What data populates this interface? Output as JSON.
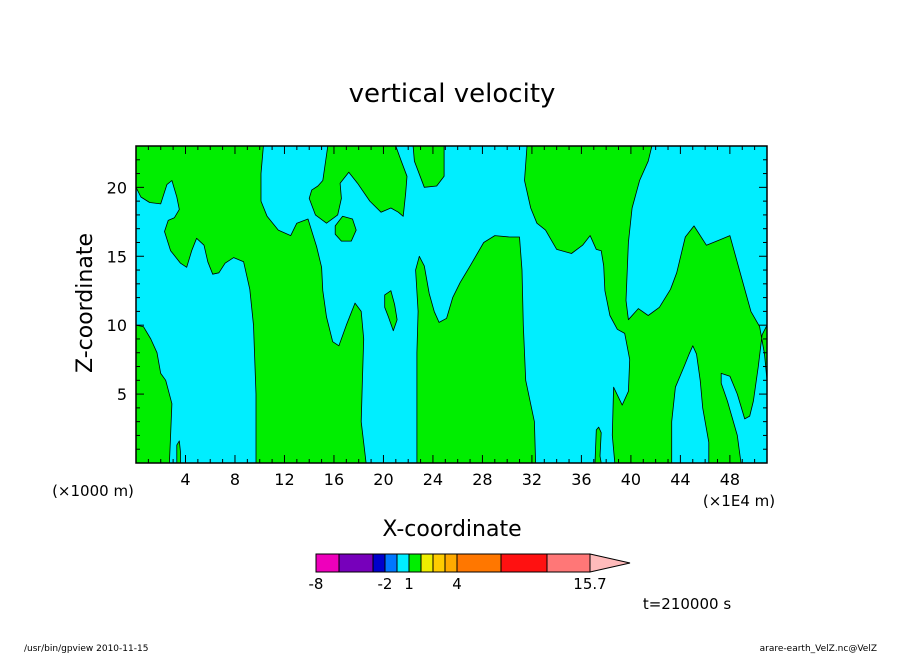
{
  "chart_data": {
    "type": "heatmap",
    "title": "vertical velocity",
    "xlabel": "X-coordinate",
    "ylabel": "Z-coordinate",
    "x_unit_left": "(×1000 m)",
    "x_unit_right": "(×1E4 m)",
    "time_label": "t=210000 s",
    "xlim": [
      0,
      51
    ],
    "ylim": [
      0,
      23
    ],
    "x_ticks": [
      4,
      8,
      12,
      16,
      20,
      24,
      28,
      32,
      36,
      40,
      44,
      48
    ],
    "y_ticks": [
      5,
      10,
      15,
      20
    ],
    "colors": {
      "negative": "#00eeff",
      "positive": "#00ee00"
    },
    "regions": [
      {
        "name": "green-region-left",
        "sign": "positive",
        "points": [
          [
            0,
            23
          ],
          [
            0,
            20
          ],
          [
            0.4,
            19.3
          ],
          [
            1.1,
            18.9
          ],
          [
            2,
            18.8
          ],
          [
            2.5,
            20.2
          ],
          [
            2.9,
            20.5
          ],
          [
            3.3,
            19.3
          ],
          [
            3.5,
            18.4
          ],
          [
            3.1,
            17.8
          ],
          [
            2.6,
            17.6
          ],
          [
            2.3,
            16.8
          ],
          [
            2.8,
            15.4
          ],
          [
            3.6,
            14.5
          ],
          [
            4.1,
            14.2
          ],
          [
            4.5,
            15.4
          ],
          [
            4.9,
            16.3
          ],
          [
            5.5,
            15.8
          ],
          [
            5.8,
            14.6
          ],
          [
            6.2,
            13.7
          ],
          [
            6.7,
            13.8
          ],
          [
            7.2,
            14.5
          ],
          [
            7.9,
            14.9
          ],
          [
            8.7,
            14.6
          ],
          [
            9.2,
            12.6
          ],
          [
            9.5,
            10
          ],
          [
            9.7,
            5
          ],
          [
            9.7,
            0
          ],
          [
            18.6,
            0
          ],
          [
            18.2,
            3
          ],
          [
            18.3,
            6
          ],
          [
            18.4,
            9
          ],
          [
            18.2,
            11
          ],
          [
            17.7,
            11.6
          ],
          [
            17,
            10
          ],
          [
            16.4,
            8.5
          ],
          [
            15.9,
            8.8
          ],
          [
            15.4,
            10.6
          ],
          [
            15.1,
            12.5
          ],
          [
            15,
            14.2
          ],
          [
            14.6,
            15.7
          ],
          [
            13.9,
            17.7
          ],
          [
            13,
            17.4
          ],
          [
            12.5,
            16.5
          ],
          [
            11.5,
            16.9
          ],
          [
            10.6,
            17.9
          ],
          [
            10.1,
            19
          ],
          [
            10.1,
            21
          ],
          [
            10.3,
            23
          ]
        ]
      },
      {
        "name": "green-region-center",
        "sign": "positive",
        "points": [
          [
            15.5,
            23
          ],
          [
            15.1,
            20.5
          ],
          [
            14.7,
            20.1
          ],
          [
            14.2,
            19.8
          ],
          [
            14,
            19.2
          ],
          [
            14.5,
            18
          ],
          [
            15.4,
            17.4
          ],
          [
            16.3,
            18
          ],
          [
            16.6,
            19.2
          ],
          [
            16.5,
            20.3
          ],
          [
            17.2,
            21.1
          ],
          [
            17.9,
            20.3
          ],
          [
            18.9,
            19
          ],
          [
            19.8,
            18.2
          ],
          [
            20.6,
            18.5
          ],
          [
            21.2,
            18.2
          ],
          [
            21.6,
            17.9
          ],
          [
            21.8,
            19.6
          ],
          [
            21.9,
            20.8
          ],
          [
            21.4,
            22
          ],
          [
            21,
            23
          ]
        ]
      },
      {
        "name": "green-region-top-a",
        "sign": "positive",
        "points": [
          [
            22.4,
            23
          ],
          [
            22.5,
            21.9
          ],
          [
            23.3,
            20
          ],
          [
            24.3,
            20.1
          ],
          [
            24.9,
            20.8
          ],
          [
            24.9,
            23
          ]
        ]
      },
      {
        "name": "green-region-upper-dot",
        "sign": "positive",
        "points": [
          [
            16.1,
            17.2
          ],
          [
            16.7,
            17.9
          ],
          [
            17.5,
            17.7
          ],
          [
            17.8,
            16.9
          ],
          [
            17.4,
            16.1
          ],
          [
            16.6,
            16.1
          ],
          [
            16.1,
            16.6
          ]
        ]
      },
      {
        "name": "green-region-small-islet",
        "sign": "positive",
        "points": [
          [
            20.1,
            12.2
          ],
          [
            20.6,
            12.5
          ],
          [
            20.9,
            11.5
          ],
          [
            21.1,
            10.4
          ],
          [
            20.8,
            9.6
          ],
          [
            20.4,
            10.6
          ],
          [
            20.1,
            11.3
          ]
        ]
      },
      {
        "name": "green-region-mid",
        "sign": "positive",
        "points": [
          [
            22.7,
            0
          ],
          [
            22.7,
            8
          ],
          [
            22.8,
            11
          ],
          [
            22.6,
            14
          ],
          [
            22.9,
            15
          ],
          [
            23.3,
            14.3
          ],
          [
            23.7,
            12.3
          ],
          [
            24.1,
            11
          ],
          [
            24.5,
            10.2
          ],
          [
            25.1,
            10.5
          ],
          [
            25.6,
            12
          ],
          [
            26.2,
            13.1
          ],
          [
            27,
            14.3
          ],
          [
            28.1,
            16
          ],
          [
            29,
            16.5
          ],
          [
            30.2,
            16.4
          ],
          [
            31,
            16.4
          ],
          [
            31.2,
            14
          ],
          [
            31.3,
            10
          ],
          [
            31.5,
            6
          ],
          [
            32.2,
            3
          ],
          [
            32.3,
            0
          ]
        ]
      },
      {
        "name": "green-region-top-right",
        "sign": "positive",
        "points": [
          [
            31.6,
            23
          ],
          [
            31.4,
            20.5
          ],
          [
            31.9,
            18.5
          ],
          [
            32.4,
            17.4
          ],
          [
            33.1,
            16.9
          ],
          [
            34,
            15.5
          ],
          [
            35.2,
            15.2
          ],
          [
            36.1,
            15.8
          ],
          [
            36.7,
            16.5
          ],
          [
            37.2,
            15.5
          ],
          [
            37.6,
            15.4
          ],
          [
            37.8,
            14.3
          ],
          [
            37.9,
            12.5
          ],
          [
            38.3,
            10.7
          ],
          [
            38.9,
            9.7
          ],
          [
            39.5,
            9.4
          ],
          [
            39.9,
            7.5
          ],
          [
            39.8,
            5.2
          ],
          [
            39.3,
            4.2
          ],
          [
            38.6,
            5.5
          ],
          [
            38.5,
            2
          ],
          [
            38.7,
            0
          ],
          [
            43.3,
            0
          ],
          [
            43.3,
            3
          ],
          [
            43.6,
            5.5
          ],
          [
            44.3,
            7
          ],
          [
            44.7,
            7.9
          ],
          [
            45,
            8.5
          ],
          [
            45.3,
            7.9
          ],
          [
            45.6,
            6
          ],
          [
            45.8,
            4
          ],
          [
            46.3,
            1.5
          ],
          [
            46.3,
            0
          ],
          [
            48.9,
            0
          ],
          [
            48.6,
            2
          ],
          [
            47.8,
            4.5
          ],
          [
            47.3,
            5.8
          ],
          [
            47.3,
            6.5
          ],
          [
            48,
            6.3
          ],
          [
            48.6,
            5
          ],
          [
            49.2,
            3.2
          ],
          [
            49.6,
            3.4
          ],
          [
            49.9,
            4.5
          ],
          [
            50.3,
            7
          ],
          [
            50.6,
            9.3
          ],
          [
            51,
            10
          ],
          [
            51,
            6
          ],
          [
            50.8,
            7.9
          ],
          [
            50.4,
            9.9
          ],
          [
            49.7,
            11
          ],
          [
            48.8,
            13.9
          ],
          [
            48,
            16.5
          ],
          [
            47.2,
            16.2
          ],
          [
            46.1,
            15.8
          ],
          [
            45.1,
            17.2
          ],
          [
            44.4,
            16.4
          ],
          [
            43.7,
            13.8
          ],
          [
            43.2,
            12.6
          ],
          [
            42.3,
            11.3
          ],
          [
            41.4,
            10.7
          ],
          [
            40.6,
            11.2
          ],
          [
            39.8,
            10.4
          ],
          [
            39.6,
            11.8
          ],
          [
            39.8,
            16
          ],
          [
            40.1,
            18.5
          ],
          [
            40.7,
            20.5
          ],
          [
            41.4,
            21.9
          ],
          [
            41.7,
            23
          ]
        ]
      },
      {
        "name": "green-region-bottom-left",
        "sign": "positive",
        "points": [
          [
            0,
            10
          ],
          [
            0,
            0
          ],
          [
            2.7,
            0
          ],
          [
            2.8,
            2
          ],
          [
            2.9,
            4.3
          ],
          [
            2.4,
            6
          ],
          [
            2,
            6.5
          ],
          [
            1.7,
            8
          ],
          [
            1.2,
            9
          ],
          [
            0.6,
            9.9
          ]
        ]
      },
      {
        "name": "green-region-small-right",
        "sign": "positive",
        "points": [
          [
            37.1,
            0
          ],
          [
            37.2,
            2.4
          ],
          [
            37.4,
            2.6
          ],
          [
            37.6,
            2.2
          ],
          [
            37.5,
            0.5
          ],
          [
            37.6,
            0
          ]
        ]
      },
      {
        "name": "green-region-small-bottom",
        "sign": "positive",
        "points": [
          [
            3.3,
            0
          ],
          [
            3.3,
            1.3
          ],
          [
            3.5,
            1.6
          ],
          [
            3.6,
            0.8
          ],
          [
            3.6,
            0
          ]
        ]
      }
    ],
    "colorbar": {
      "labels": [
        "-8",
        "-2",
        "1",
        "4",
        "15.7"
      ],
      "boxes": [
        "#ee00bb",
        "#7700bb",
        "#0000cc",
        "#0077ff",
        "#00eeff",
        "#00ee00",
        "#eeee00",
        "#ffcc00",
        "#ffaa00",
        "#ff7700",
        "#ff1111",
        "#ff7777"
      ],
      "arrow_color": "#ffbbbb"
    }
  },
  "footer": {
    "left": "/usr/bin/gpview  2010-11-15",
    "right": "arare-earth_VelZ.nc@VelZ"
  }
}
